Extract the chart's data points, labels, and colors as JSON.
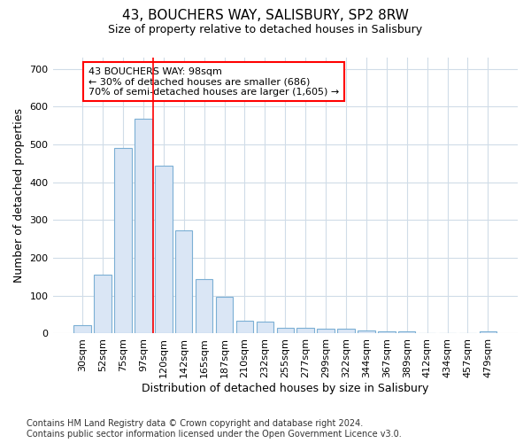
{
  "title": "43, BOUCHERS WAY, SALISBURY, SP2 8RW",
  "subtitle": "Size of property relative to detached houses in Salisbury",
  "xlabel": "Distribution of detached houses by size in Salisbury",
  "ylabel": "Number of detached properties",
  "bar_color": "#dae6f5",
  "bar_edge_color": "#7bafd4",
  "categories": [
    "30sqm",
    "52sqm",
    "75sqm",
    "97sqm",
    "120sqm",
    "142sqm",
    "165sqm",
    "187sqm",
    "210sqm",
    "232sqm",
    "255sqm",
    "277sqm",
    "299sqm",
    "322sqm",
    "344sqm",
    "367sqm",
    "389sqm",
    "412sqm",
    "434sqm",
    "457sqm",
    "479sqm"
  ],
  "values": [
    22,
    155,
    492,
    568,
    443,
    273,
    145,
    97,
    35,
    32,
    14,
    15,
    12,
    12,
    7,
    6,
    6,
    0,
    0,
    0,
    6
  ],
  "red_line_x": 3.5,
  "annotation_text": "43 BOUCHERS WAY: 98sqm\n← 30% of detached houses are smaller (686)\n70% of semi-detached houses are larger (1,605) →",
  "annotation_box_color": "white",
  "annotation_box_edge_color": "red",
  "ylim": [
    0,
    730
  ],
  "footer_line1": "Contains HM Land Registry data © Crown copyright and database right 2024.",
  "footer_line2": "Contains public sector information licensed under the Open Government Licence v3.0.",
  "background_color": "#ffffff",
  "plot_bg_color": "#ffffff",
  "grid_color": "#d0dce8",
  "title_fontsize": 11,
  "subtitle_fontsize": 9,
  "ylabel_fontsize": 9,
  "xlabel_fontsize": 9,
  "tick_fontsize": 8,
  "annotation_fontsize": 8,
  "footer_fontsize": 7
}
